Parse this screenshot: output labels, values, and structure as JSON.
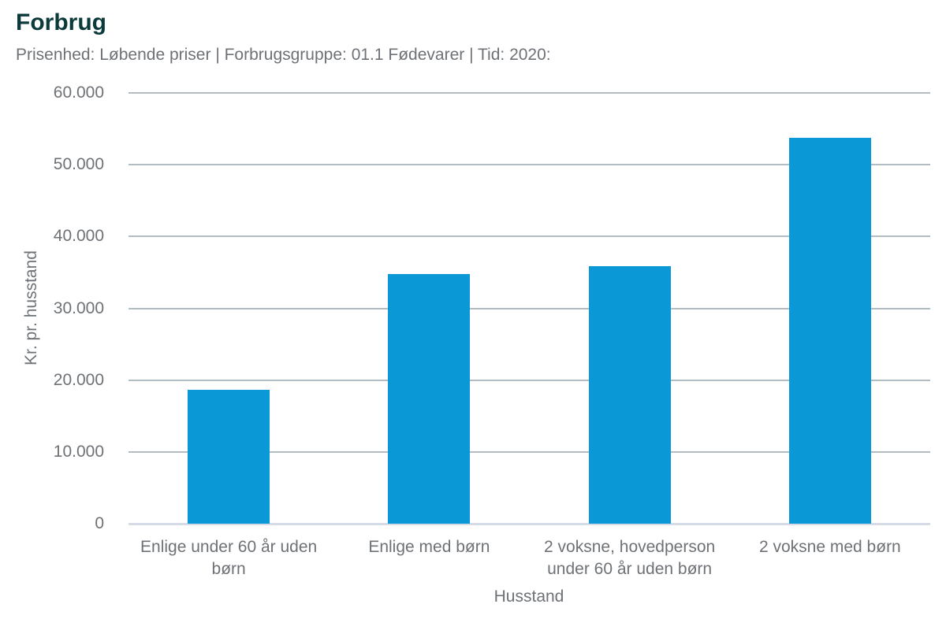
{
  "header": {
    "title": "Forbrug",
    "subtitle": "Prisenhed: Løbende priser | Forbrugsgruppe: 01.1 Fødevarer | Tid: 2020:"
  },
  "chart_data": {
    "type": "bar",
    "title": "Forbrug",
    "subtitle": "Prisenhed: Løbende priser | Forbrugsgruppe: 01.1 Fødevarer | Tid: 2020:",
    "categories": [
      "Enlige under 60 år uden børn",
      "Enlige med børn",
      "2 voksne, hovedperson under 60 år uden børn",
      "2 voksne med børn"
    ],
    "values": [
      18600,
      34800,
      35900,
      53700
    ],
    "xlabel": "Husstand",
    "ylabel": "Kr. pr. husstand",
    "ylim": [
      0,
      60000
    ],
    "y_ticks": [
      {
        "value": 0,
        "label": "0"
      },
      {
        "value": 10000,
        "label": "10.000"
      },
      {
        "value": 20000,
        "label": "20.000"
      },
      {
        "value": 30000,
        "label": "30.000"
      },
      {
        "value": 40000,
        "label": "40.000"
      },
      {
        "value": 50000,
        "label": "50.000"
      },
      {
        "value": 60000,
        "label": "60.000"
      }
    ],
    "grid": "horizontal",
    "legend": "none",
    "bar_color": "#0a98d7"
  },
  "colors": {
    "title": "#0c3a3b",
    "muted_text": "#6e7276",
    "bar": "#0a98d7",
    "gridline": "#b1bdc3",
    "baseline": "#d6dce6",
    "background": "#ffffff"
  }
}
